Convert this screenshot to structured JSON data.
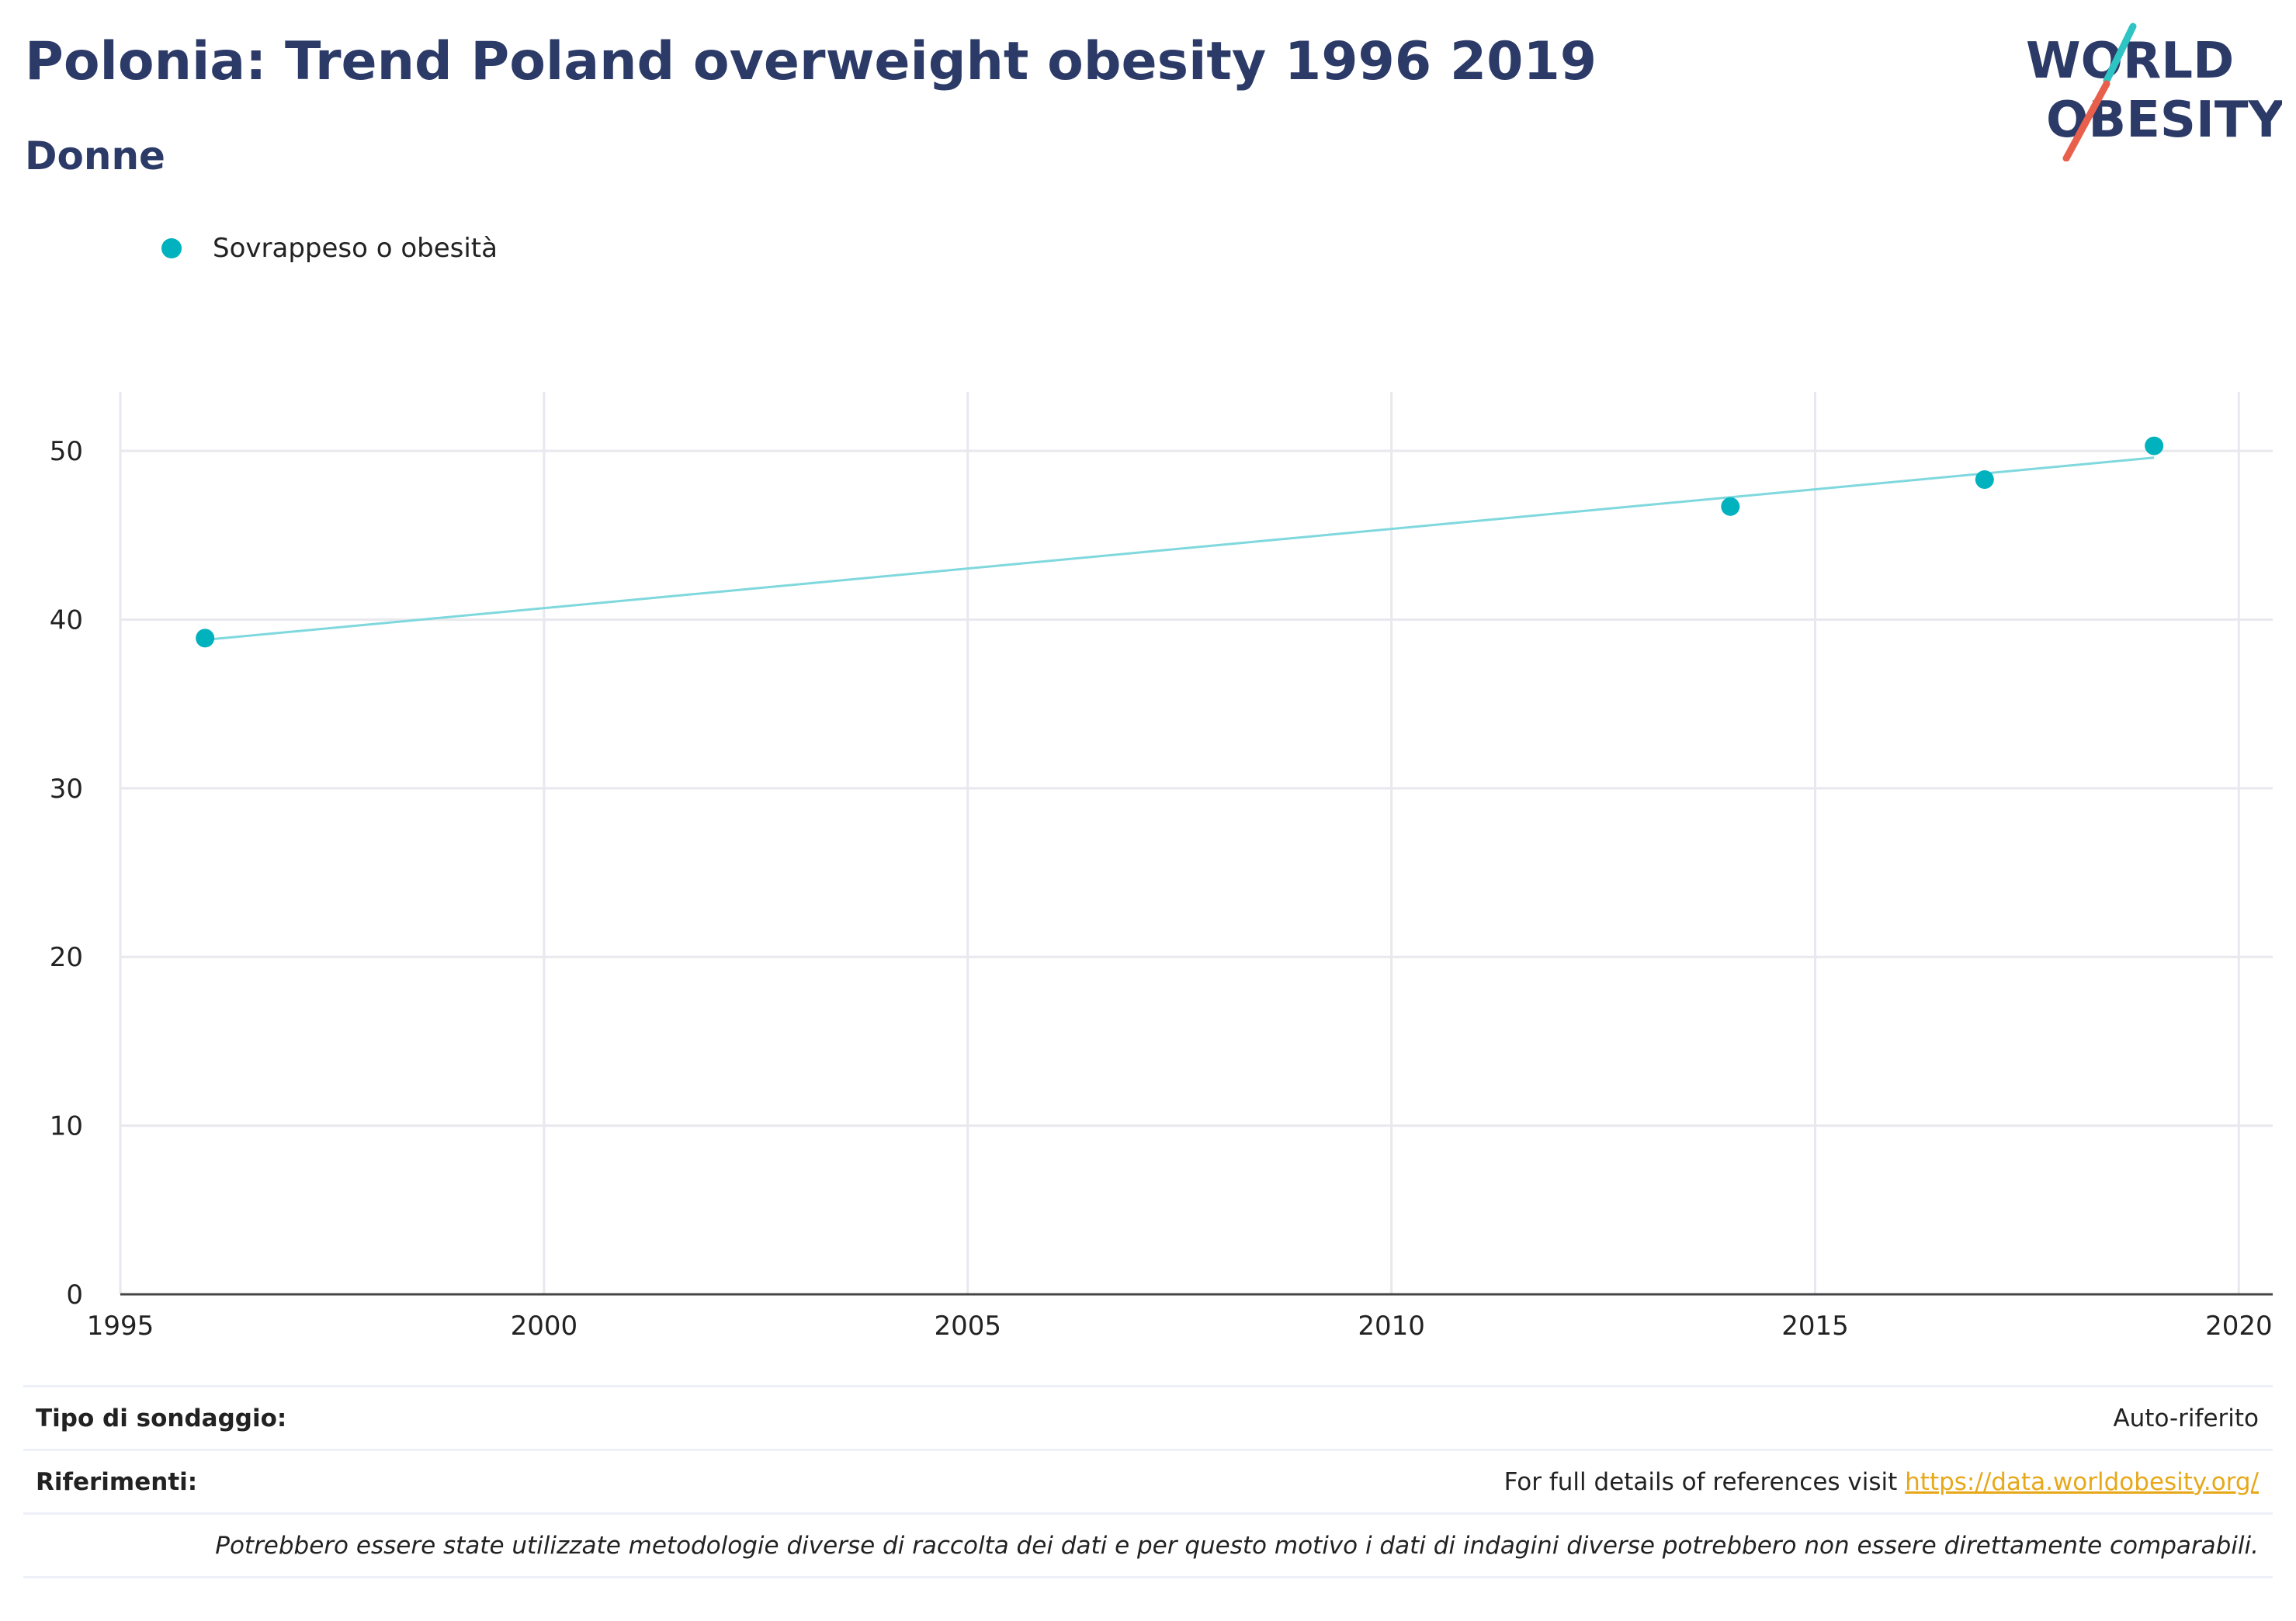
{
  "header": {
    "title": "Polonia: Trend Poland overweight obesity 1996 2019",
    "subtitle": "Donne"
  },
  "logo": {
    "line1": "WORLD",
    "line2": "OBESITY",
    "colors": {
      "text": "#2b3a67",
      "slash_top": "#2ec4c4",
      "slash_bottom": "#e8604c"
    }
  },
  "legend": {
    "label": "Sovrappeso o obesità",
    "color": "#00b2bd"
  },
  "chart_data": {
    "type": "scatter",
    "title": "",
    "xlabel": "",
    "ylabel": "",
    "xlim": [
      1995,
      2020.4
    ],
    "ylim": [
      0,
      53.5
    ],
    "x_ticks": [
      1995,
      2000,
      2005,
      2010,
      2015,
      2020
    ],
    "y_ticks": [
      0,
      10,
      20,
      30,
      40,
      50
    ],
    "grid": true,
    "legend_position": "top-left",
    "series": [
      {
        "name": "Sovrappeso o obesità",
        "color": "#00b2bd",
        "x": [
          1996,
          2014,
          2017,
          2019
        ],
        "y": [
          38.9,
          46.7,
          48.3,
          50.3
        ]
      }
    ],
    "trendline": {
      "color": "#7fd8dd",
      "x": [
        1996,
        2019
      ],
      "y": [
        38.8,
        49.6
      ]
    }
  },
  "info": {
    "survey_type_label": "Tipo di sondaggio:",
    "survey_type_value": "Auto-riferito",
    "references_label": "Riferimenti:",
    "references_text": "For full details of references visit ",
    "references_link": "https://data.worldobesity.org/",
    "note": "Potrebbero essere state utilizzate metodologie diverse di raccolta dei dati e per questo motivo i dati di indagini diverse potrebbero non essere direttamente comparabili."
  }
}
